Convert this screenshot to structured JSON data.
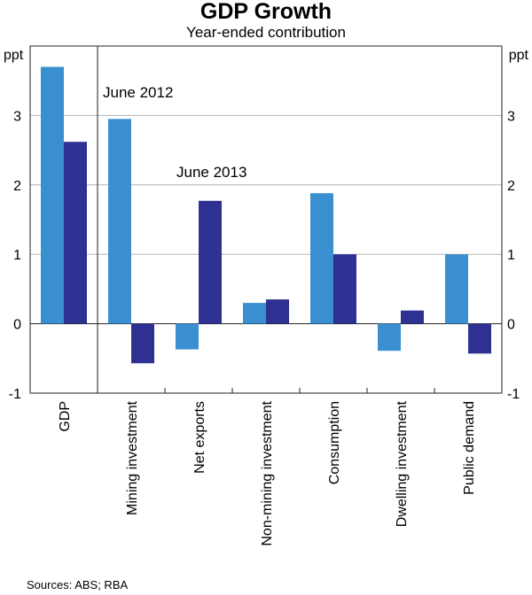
{
  "chart_data": {
    "type": "bar",
    "title": "GDP Growth",
    "subtitle": "Year-ended contribution",
    "ylabel_left": "ppt",
    "ylabel_right": "ppt",
    "ylim": [
      -1,
      4
    ],
    "yticks": [
      -1,
      0,
      1,
      2,
      3
    ],
    "grid": true,
    "categories": [
      "GDP",
      "Mining investment",
      "Net exports",
      "Non-mining investment",
      "Consumption",
      "Dwelling investment",
      "Public demand"
    ],
    "series": [
      {
        "name": "June 2012",
        "color": "#3a8fd0",
        "values": [
          3.7,
          2.95,
          -0.37,
          0.3,
          1.88,
          -0.39,
          1.0
        ]
      },
      {
        "name": "June 2013",
        "color": "#2e3191",
        "values": [
          2.62,
          -0.57,
          1.77,
          0.35,
          1.0,
          0.19,
          -0.43
        ]
      }
    ],
    "source": "Sources: ABS; RBA"
  }
}
